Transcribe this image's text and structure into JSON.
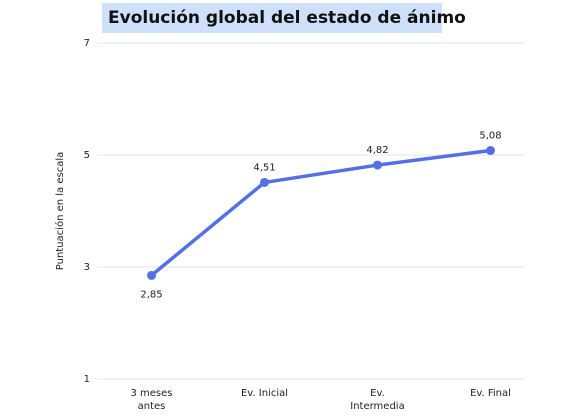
{
  "chart_data": {
    "type": "line",
    "title": "Evolución global del estado de ánimo",
    "y_label": "Puntuación en la escala",
    "categories": [
      "3 meses antes",
      "Ev. Inicial",
      "Ev. Intermedia",
      "Ev. Final"
    ],
    "series": [
      {
        "name": "Estado de ánimo",
        "color": "#5170ea",
        "values": [
          2.85,
          4.51,
          4.82,
          5.08
        ],
        "value_labels": [
          "2,85",
          "4,51",
          "4,82",
          "5,08"
        ]
      }
    ],
    "ylim": [
      1,
      7
    ],
    "yticks": [
      1,
      3,
      5,
      7
    ],
    "grid": true
  }
}
